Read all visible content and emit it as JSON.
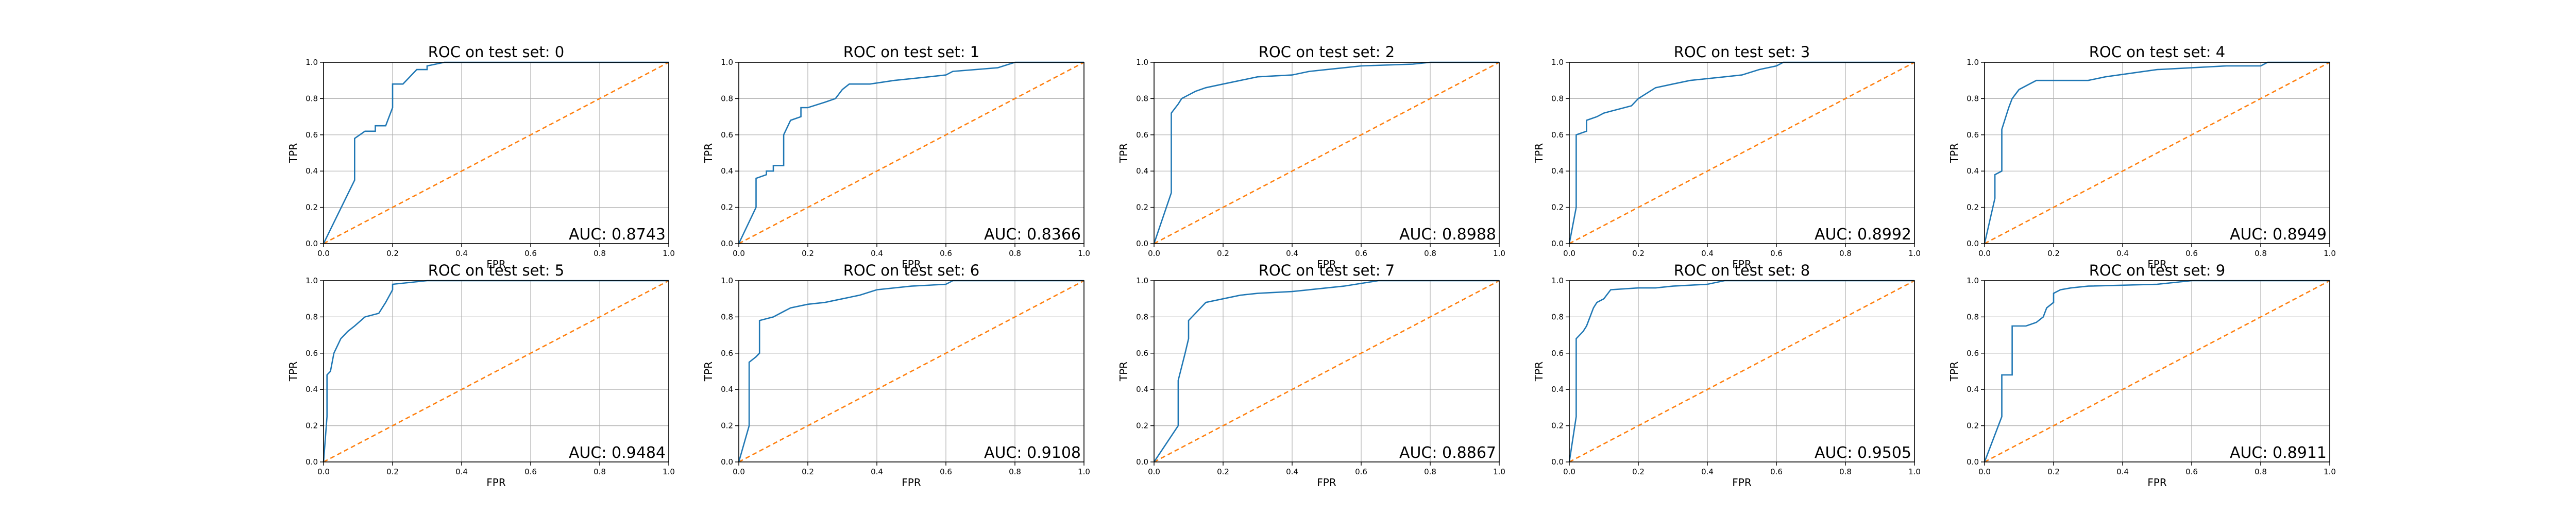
{
  "figure": {
    "xlabel": "FPR",
    "ylabel": "TPR",
    "xlim": [
      0,
      1
    ],
    "ylim": [
      0,
      1
    ],
    "ticks": [
      "0.0",
      "0.2",
      "0.4",
      "0.6",
      "0.8",
      "1.0"
    ],
    "grid": true,
    "colors": {
      "roc": "#1f77b4",
      "chance": "#ff7f0e",
      "grid": "#b0b0b0",
      "axes": "#000000"
    }
  },
  "chart_data": [
    {
      "type": "line",
      "title": "ROC on test set: 0",
      "auc_label": "AUC: 0.8743",
      "series": [
        {
          "x": [
            0,
            0.09,
            0.09,
            0.12,
            0.15,
            0.15,
            0.18,
            0.2,
            0.2,
            0.23,
            0.25,
            0.27,
            0.3,
            0.3,
            0.35,
            0.42,
            0.5,
            1.0
          ],
          "y": [
            0,
            0.35,
            0.58,
            0.62,
            0.62,
            0.65,
            0.65,
            0.75,
            0.88,
            0.88,
            0.92,
            0.96,
            0.96,
            0.98,
            1.0,
            1.0,
            1.0,
            1.0
          ]
        },
        {
          "x": [
            0,
            1
          ],
          "y": [
            0,
            1
          ]
        }
      ]
    },
    {
      "type": "line",
      "title": "ROC on test set: 1",
      "auc_label": "AUC: 0.8366",
      "series": [
        {
          "x": [
            0,
            0.05,
            0.05,
            0.08,
            0.08,
            0.1,
            0.1,
            0.13,
            0.13,
            0.15,
            0.18,
            0.18,
            0.2,
            0.25,
            0.28,
            0.3,
            0.32,
            0.38,
            0.45,
            0.55,
            0.6,
            0.62,
            0.75,
            0.8,
            1.0
          ],
          "y": [
            0,
            0.2,
            0.36,
            0.38,
            0.4,
            0.4,
            0.43,
            0.43,
            0.6,
            0.68,
            0.7,
            0.75,
            0.75,
            0.78,
            0.8,
            0.85,
            0.88,
            0.88,
            0.9,
            0.92,
            0.93,
            0.95,
            0.97,
            1.0,
            1.0
          ]
        },
        {
          "x": [
            0,
            1
          ],
          "y": [
            0,
            1
          ]
        }
      ]
    },
    {
      "type": "line",
      "title": "ROC on test set: 2",
      "auc_label": "AUC: 0.8988",
      "series": [
        {
          "x": [
            0,
            0.05,
            0.05,
            0.07,
            0.08,
            0.1,
            0.12,
            0.15,
            0.2,
            0.25,
            0.3,
            0.4,
            0.45,
            0.5,
            0.55,
            0.6,
            0.75,
            0.8,
            0.9,
            1.0
          ],
          "y": [
            0,
            0.28,
            0.72,
            0.77,
            0.8,
            0.82,
            0.84,
            0.86,
            0.88,
            0.9,
            0.92,
            0.93,
            0.95,
            0.96,
            0.97,
            0.98,
            0.99,
            1.0,
            1.0,
            1.0
          ]
        },
        {
          "x": [
            0,
            1
          ],
          "y": [
            0,
            1
          ]
        }
      ]
    },
    {
      "type": "line",
      "title": "ROC on test set: 3",
      "auc_label": "AUC: 0.8992",
      "series": [
        {
          "x": [
            0,
            0.02,
            0.02,
            0.05,
            0.05,
            0.08,
            0.1,
            0.12,
            0.18,
            0.2,
            0.25,
            0.3,
            0.35,
            0.45,
            0.5,
            0.55,
            0.6,
            0.62,
            0.75,
            0.8,
            1.0
          ],
          "y": [
            0,
            0.2,
            0.6,
            0.62,
            0.68,
            0.7,
            0.72,
            0.73,
            0.76,
            0.8,
            0.86,
            0.88,
            0.9,
            0.92,
            0.93,
            0.96,
            0.98,
            1.0,
            1.0,
            1.0,
            1.0
          ]
        },
        {
          "x": [
            0,
            1
          ],
          "y": [
            0,
            1
          ]
        }
      ]
    },
    {
      "type": "line",
      "title": "ROC on test set: 4",
      "auc_label": "AUC: 0.8949",
      "series": [
        {
          "x": [
            0,
            0.03,
            0.03,
            0.05,
            0.05,
            0.07,
            0.08,
            0.1,
            0.13,
            0.15,
            0.2,
            0.3,
            0.35,
            0.5,
            0.6,
            0.7,
            0.8,
            0.82,
            0.9,
            1.0
          ],
          "y": [
            0,
            0.25,
            0.38,
            0.4,
            0.63,
            0.75,
            0.8,
            0.85,
            0.88,
            0.9,
            0.9,
            0.9,
            0.92,
            0.96,
            0.97,
            0.98,
            0.98,
            1.0,
            1.0,
            1.0
          ]
        },
        {
          "x": [
            0,
            1
          ],
          "y": [
            0,
            1
          ]
        }
      ]
    },
    {
      "type": "line",
      "title": "ROC on test set: 5",
      "auc_label": "AUC: 0.9484",
      "series": [
        {
          "x": [
            0,
            0.01,
            0.01,
            0.02,
            0.03,
            0.05,
            0.07,
            0.09,
            0.12,
            0.16,
            0.18,
            0.2,
            0.2,
            0.3,
            0.35,
            0.5,
            1.0
          ],
          "y": [
            0,
            0.25,
            0.48,
            0.5,
            0.6,
            0.68,
            0.72,
            0.75,
            0.8,
            0.82,
            0.88,
            0.95,
            0.98,
            1.0,
            1.0,
            1.0,
            1.0
          ]
        },
        {
          "x": [
            0,
            1
          ],
          "y": [
            0,
            1
          ]
        }
      ]
    },
    {
      "type": "line",
      "title": "ROC on test set: 6",
      "auc_label": "AUC: 0.9108",
      "series": [
        {
          "x": [
            0,
            0.03,
            0.03,
            0.05,
            0.06,
            0.06,
            0.1,
            0.13,
            0.15,
            0.2,
            0.25,
            0.3,
            0.35,
            0.4,
            0.5,
            0.6,
            0.62,
            0.8,
            1.0
          ],
          "y": [
            0,
            0.2,
            0.55,
            0.58,
            0.6,
            0.78,
            0.8,
            0.83,
            0.85,
            0.87,
            0.88,
            0.9,
            0.92,
            0.95,
            0.97,
            0.98,
            1.0,
            1.0,
            1.0
          ]
        },
        {
          "x": [
            0,
            1
          ],
          "y": [
            0,
            1
          ]
        }
      ]
    },
    {
      "type": "line",
      "title": "ROC on test set: 7",
      "auc_label": "AUC: 0.8867",
      "series": [
        {
          "x": [
            0,
            0.07,
            0.07,
            0.09,
            0.1,
            0.1,
            0.12,
            0.15,
            0.2,
            0.25,
            0.3,
            0.4,
            0.45,
            0.5,
            0.55,
            0.65,
            0.7,
            0.8,
            1.0
          ],
          "y": [
            0,
            0.2,
            0.45,
            0.6,
            0.68,
            0.78,
            0.82,
            0.88,
            0.9,
            0.92,
            0.93,
            0.94,
            0.95,
            0.96,
            0.97,
            1.0,
            1.0,
            1.0,
            1.0
          ]
        },
        {
          "x": [
            0,
            1
          ],
          "y": [
            0,
            1
          ]
        }
      ]
    },
    {
      "type": "line",
      "title": "ROC on test set: 8",
      "auc_label": "AUC: 0.9505",
      "series": [
        {
          "x": [
            0,
            0.02,
            0.02,
            0.04,
            0.05,
            0.07,
            0.08,
            0.1,
            0.12,
            0.2,
            0.25,
            0.3,
            0.4,
            0.45,
            0.6,
            0.8,
            1.0
          ],
          "y": [
            0,
            0.25,
            0.68,
            0.72,
            0.75,
            0.85,
            0.88,
            0.9,
            0.95,
            0.96,
            0.96,
            0.97,
            0.98,
            1.0,
            1.0,
            1.0,
            1.0
          ]
        },
        {
          "x": [
            0,
            1
          ],
          "y": [
            0,
            1
          ]
        }
      ]
    },
    {
      "type": "line",
      "title": "ROC on test set: 9",
      "auc_label": "AUC: 0.8911",
      "series": [
        {
          "x": [
            0,
            0.05,
            0.05,
            0.08,
            0.08,
            0.12,
            0.15,
            0.17,
            0.18,
            0.2,
            0.2,
            0.22,
            0.25,
            0.3,
            0.5,
            0.55,
            0.6,
            0.62,
            0.8,
            1.0
          ],
          "y": [
            0,
            0.25,
            0.48,
            0.48,
            0.75,
            0.75,
            0.77,
            0.8,
            0.85,
            0.88,
            0.93,
            0.95,
            0.96,
            0.97,
            0.98,
            0.99,
            1.0,
            1.0,
            1.0,
            1.0
          ]
        },
        {
          "x": [
            0,
            1
          ],
          "y": [
            0,
            1
          ]
        }
      ]
    }
  ]
}
